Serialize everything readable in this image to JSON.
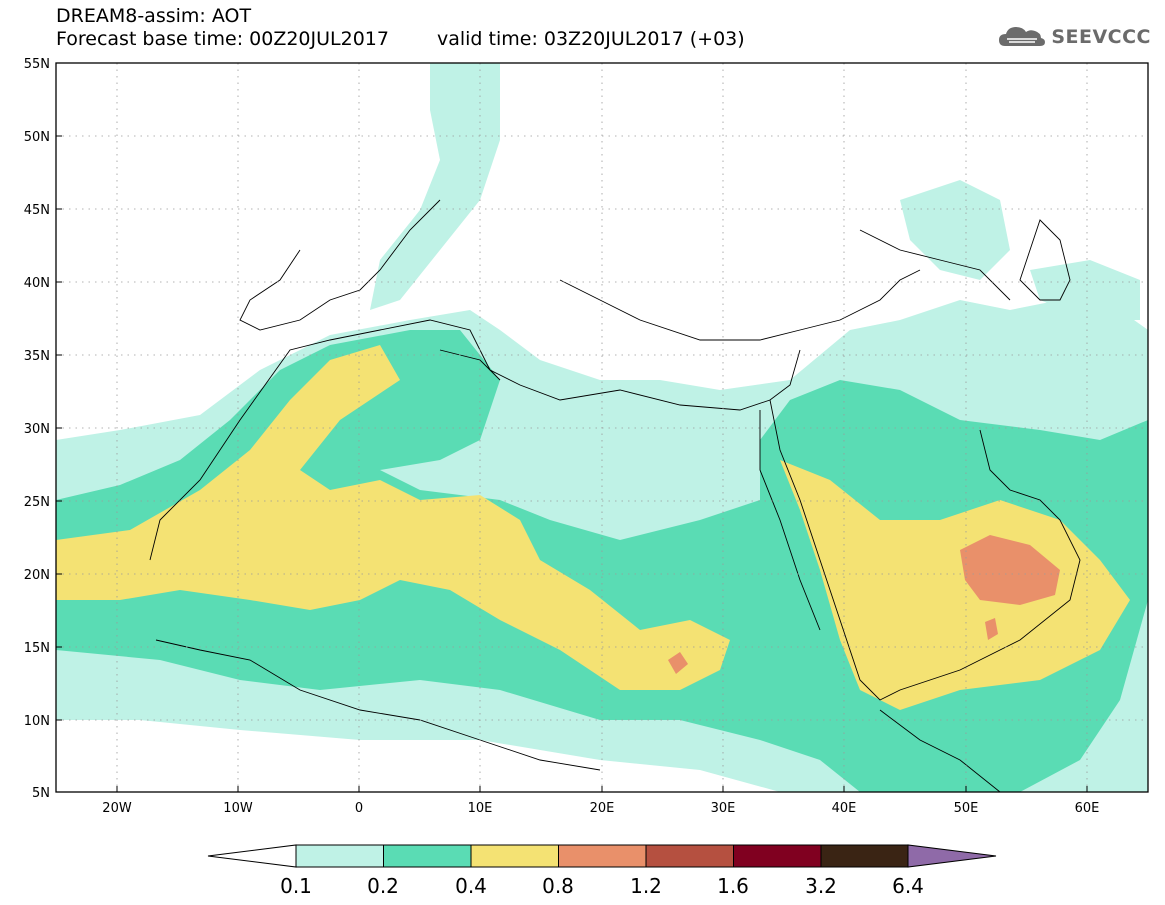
{
  "header": {
    "line1": "DREAM8-assim: AOT",
    "base_time": "Forecast base time: 00Z20JUL2017",
    "valid_time": "valid time: 03Z20JUL2017 (+03)"
  },
  "logo": {
    "text": "SEEVCCC",
    "icon": "cloud-icon"
  },
  "map": {
    "type": "contour-map",
    "variable": "AOT",
    "lon_range": [
      -25,
      65
    ],
    "lat_range": [
      5,
      55
    ],
    "lat_ticks": [
      "55N",
      "50N",
      "45N",
      "40N",
      "35N",
      "30N",
      "25N",
      "20N",
      "15N",
      "10N",
      "5N"
    ],
    "lon_ticks": [
      "20W",
      "10W",
      "0",
      "10E",
      "20E",
      "30E",
      "40E",
      "50E",
      "60E"
    ],
    "grid": "dotted"
  },
  "colorbar": {
    "labels": [
      "0.1",
      "0.2",
      "0.4",
      "0.8",
      "1.2",
      "1.6",
      "3.2",
      "6.4"
    ],
    "colors": [
      "#bff2e6",
      "#5adcb4",
      "#f4e273",
      "#e9906a",
      "#b55040",
      "#800020",
      "#3a2414",
      "#8f6aa8"
    ]
  }
}
